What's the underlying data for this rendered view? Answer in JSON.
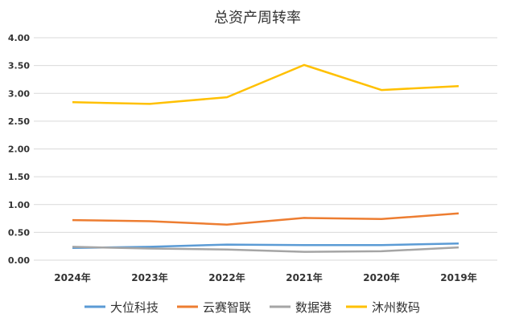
{
  "chart_data": {
    "type": "line",
    "title": "总资产周转率",
    "categories": [
      "2024年",
      "2023年",
      "2022年",
      "2021年",
      "2020年",
      "2019年"
    ],
    "ylim": [
      0,
      4
    ],
    "yticks": [
      "0.00",
      "0.50",
      "1.00",
      "1.50",
      "2.00",
      "2.50",
      "3.00",
      "3.50",
      "4.00"
    ],
    "grid": true,
    "legend_position": "bottom",
    "series": [
      {
        "name": "大位科技",
        "color": "#5b9bd5",
        "values": [
          0.22,
          0.24,
          0.28,
          0.27,
          0.27,
          0.3
        ]
      },
      {
        "name": "云赛智联",
        "color": "#ed7d31",
        "values": [
          0.72,
          0.7,
          0.64,
          0.76,
          0.74,
          0.84
        ]
      },
      {
        "name": "数据港",
        "color": "#a5a5a5",
        "values": [
          0.24,
          0.21,
          0.19,
          0.15,
          0.16,
          0.23
        ]
      },
      {
        "name": "沐州数码",
        "color": "#ffc000",
        "values": [
          2.84,
          2.81,
          2.93,
          3.51,
          3.06,
          3.13
        ]
      }
    ]
  }
}
